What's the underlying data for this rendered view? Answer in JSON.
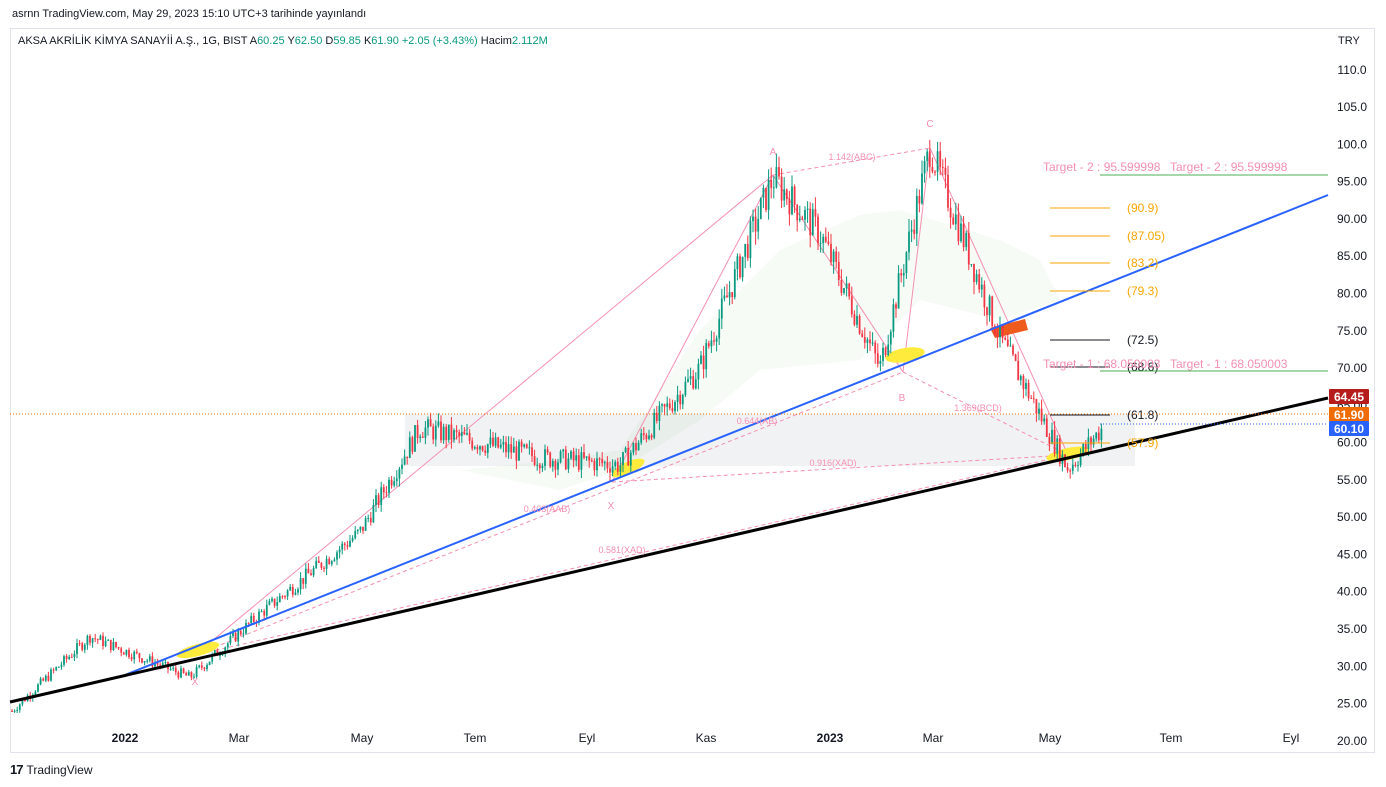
{
  "header": {
    "published": "asrnn TradingView.com, May 29, 2023 15:10 UTC+3 tarihinde yayınlandı",
    "symbol": "AKSA AKRİLİK KİMYA SANAYİİ A.Ş., 1G, BIST",
    "open_label": "A",
    "open": "60.25",
    "high_label": "Y",
    "high": "62.50",
    "low_label": "D",
    "low": "59.85",
    "close_label": "K",
    "close": "61.90",
    "change": "+2.05 (+3.43%)",
    "volume_label": "Hacim",
    "volume": "2.112M",
    "currency": "TRY"
  },
  "brand": {
    "logo": "17",
    "name": "TradingView"
  },
  "colors": {
    "up": "#089981",
    "down": "#f23645",
    "pattern": "#f48fb1",
    "blue_line": "#2962ff",
    "black_line": "#000000",
    "fib": "#f7a600",
    "target": "#4caf50"
  },
  "chart_data": {
    "type": "candlestick",
    "ylim": [
      18.5,
      114
    ],
    "y_ticks": [
      "110.0",
      "105.0",
      "100.0",
      "95.00",
      "90.00",
      "85.00",
      "80.00",
      "75.00",
      "70.00",
      "65.00",
      "60.00",
      "55.00",
      "50.00",
      "45.00",
      "40.00",
      "35.00",
      "30.00",
      "25.00",
      "20.00"
    ],
    "x_labels": [
      "2022",
      "Mar",
      "May",
      "Tem",
      "Eyl",
      "Kas",
      "2023",
      "Mar",
      "May",
      "Tem",
      "Eyl"
    ],
    "key_closes": [
      {
        "label": "start",
        "value": 24
      },
      {
        "label": "2022 Jan",
        "value": 34
      },
      {
        "label": "Feb low",
        "value": 28.5
      },
      {
        "label": "Apr",
        "value": 37
      },
      {
        "label": "May",
        "value": 48
      },
      {
        "label": "Jun",
        "value": 62
      },
      {
        "label": "Aug",
        "value": 58
      },
      {
        "label": "Sep low",
        "value": 57
      },
      {
        "label": "Oct",
        "value": 70
      },
      {
        "label": "Nov high",
        "value": 95.5
      },
      {
        "label": "Dec",
        "value": 88
      },
      {
        "label": "Jan low",
        "value": 70
      },
      {
        "label": "Feb high",
        "value": 99.5
      },
      {
        "label": "Apr",
        "value": 74
      },
      {
        "label": "May low",
        "value": 56.5
      },
      {
        "label": "last",
        "value": 61.9
      }
    ],
    "price_badges": [
      {
        "value": "64.45",
        "color": "#b71c1c"
      },
      {
        "value": "61.90",
        "color": "#ef6c00"
      },
      {
        "value": "60.10",
        "color": "#2962ff"
      }
    ],
    "fib_levels": [
      "(90.9)",
      "(87.05)",
      "(83.2)",
      "(79.3)",
      "(72.5)",
      "(68.6)",
      "(61.8)",
      "(57.9)"
    ],
    "targets": [
      "Target - 2 : 95.599998",
      "Target - 2 : 95.599998",
      "Target - 1 : 68.050003",
      "Target - 1 : 68.050003"
    ],
    "pattern_points": [
      "X",
      "A",
      "B",
      "C",
      "X"
    ],
    "pattern_ratios": [
      "1.142(ABC)",
      "1.369(BCD)",
      "0.403(AAB)",
      "0.581(XAD)",
      "0.644(AB)",
      "0.916(XAD)"
    ]
  }
}
